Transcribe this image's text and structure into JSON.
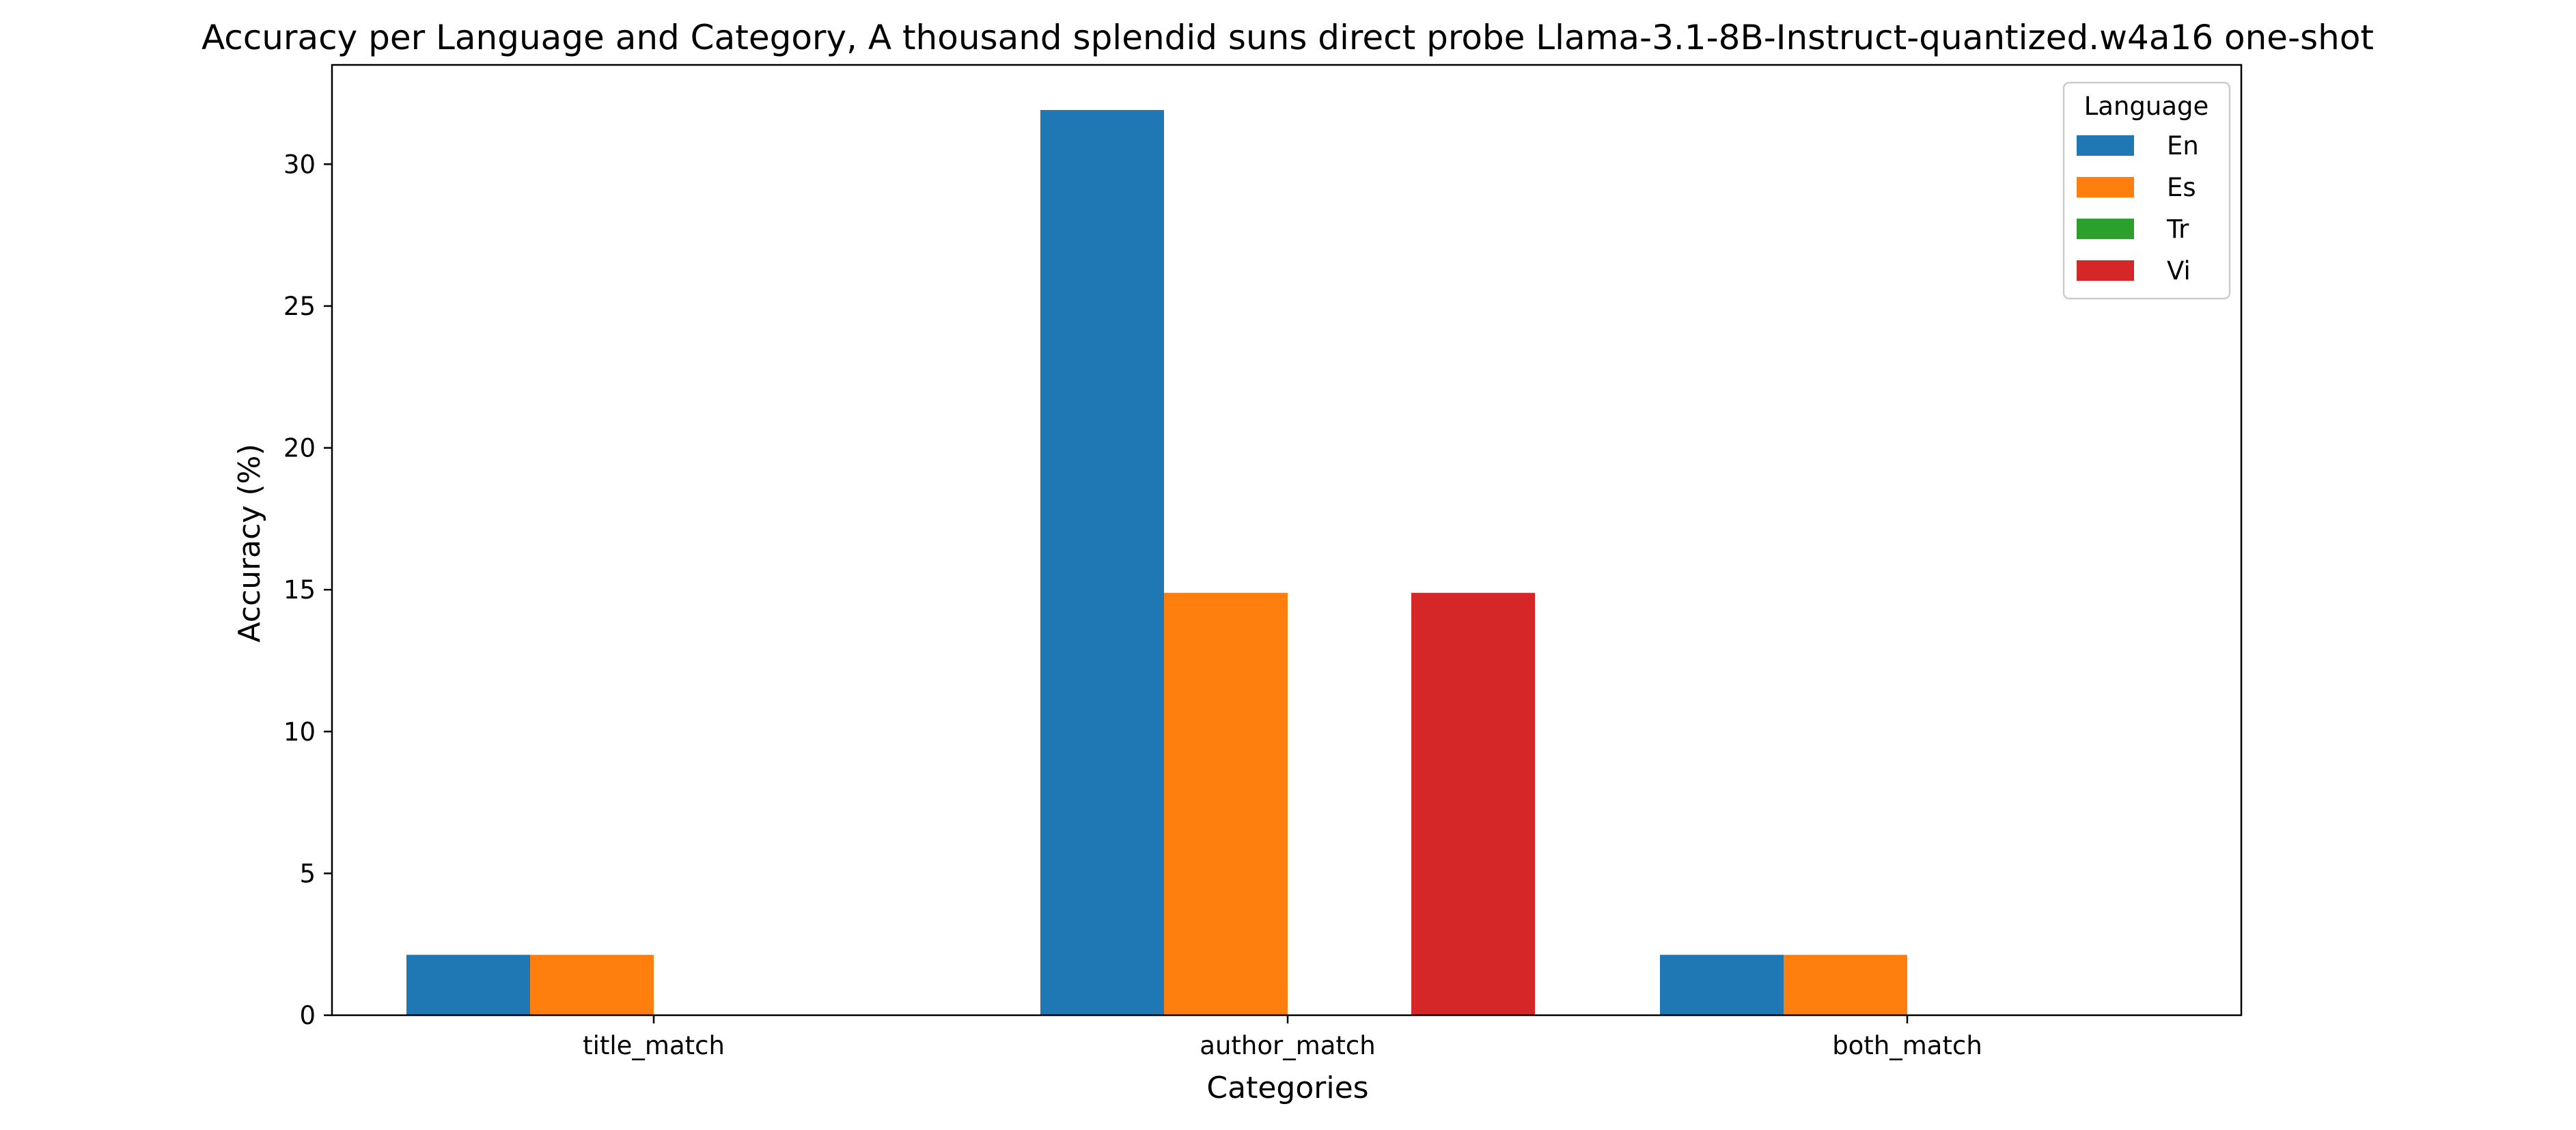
{
  "chart_data": {
    "type": "bar",
    "title": "Accuracy per Language and Category, A thousand splendid suns direct probe Llama-3.1-8B-Instruct-quantized.w4a16 one-shot",
    "xlabel": "Categories",
    "ylabel": "Accuracy (%)",
    "categories": [
      "title_match",
      "author_match",
      "both_match"
    ],
    "series": [
      {
        "name": "En",
        "values": [
          2.13,
          31.91,
          2.13
        ],
        "color": "#1f77b4"
      },
      {
        "name": "Es",
        "values": [
          2.13,
          14.89,
          2.13
        ],
        "color": "#ff7f0e"
      },
      {
        "name": "Tr",
        "values": [
          0,
          0,
          0
        ],
        "color": "#2ca02c"
      },
      {
        "name": "Vi",
        "values": [
          0,
          14.89,
          0
        ],
        "color": "#d62728"
      }
    ],
    "ylim": [
      0,
      33.5
    ],
    "yticks": [
      0,
      5,
      10,
      15,
      20,
      25,
      30
    ],
    "grid": false,
    "legend": {
      "title": "Language",
      "placement": "top-right"
    }
  }
}
